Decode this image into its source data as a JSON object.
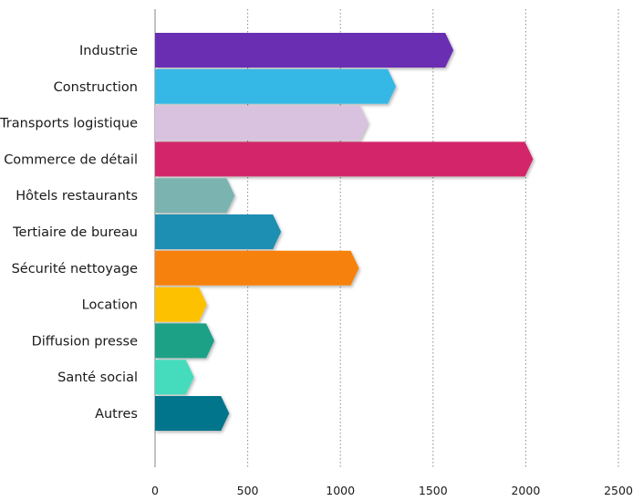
{
  "chart_data": {
    "type": "bar",
    "orientation": "horizontal",
    "categories": [
      "Industrie",
      "Construction",
      "Transports logistique",
      "Commerce de détail",
      "Hôtels restaurants",
      "Tertiaire de bureau",
      "Sécurité nettoyage",
      "Location",
      "Diffusion presse",
      "Santé social",
      "Autres"
    ],
    "values": [
      1610,
      1300,
      1150,
      2040,
      430,
      680,
      1100,
      280,
      320,
      210,
      400
    ],
    "colors": [
      "#6a2fb3",
      "#35b8e6",
      "#d9c1e0",
      "#d3266a",
      "#7ab3b0",
      "#1d8fb2",
      "#f7810a",
      "#fec102",
      "#1fa187",
      "#45dbbd",
      "#06758c"
    ],
    "xlim": [
      0,
      2500
    ],
    "xticks": [
      0,
      500,
      1000,
      1500,
      2000,
      2500
    ],
    "grid": true,
    "title": "",
    "xlabel": "",
    "ylabel": ""
  }
}
